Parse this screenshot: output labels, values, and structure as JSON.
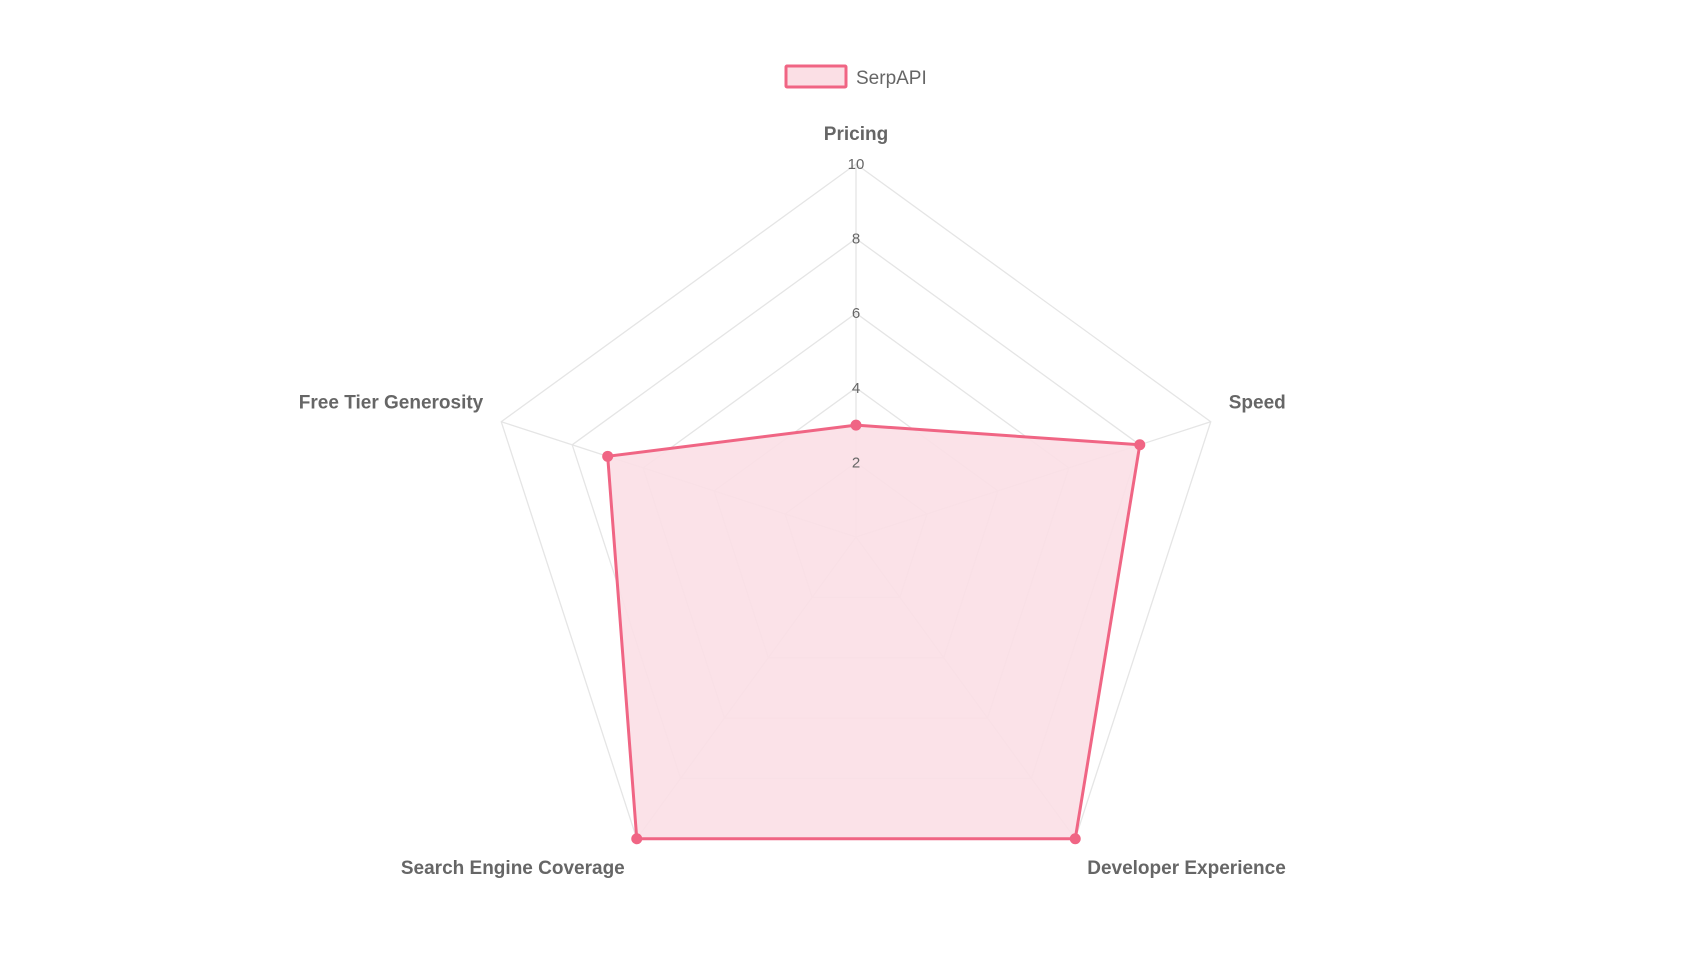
{
  "chart_data": {
    "type": "radar",
    "labels": [
      "Pricing",
      "Speed",
      "Developer Experience",
      "Search Engine Coverage",
      "Free Tier Generosity"
    ],
    "series": [
      {
        "name": "SerpAPI",
        "values": [
          3,
          8,
          10,
          10,
          7
        ],
        "border_color": "#f06584",
        "fill_color": "#fbdfe5"
      }
    ],
    "r_range": [
      0,
      10
    ],
    "ticks": [
      "2",
      "4",
      "6",
      "8",
      "10"
    ],
    "tick_values": [
      2,
      4,
      6,
      8,
      10
    ],
    "grid": true,
    "grid_color": "#e5e5e5",
    "legend_position": "top",
    "text_color": "#666666"
  }
}
